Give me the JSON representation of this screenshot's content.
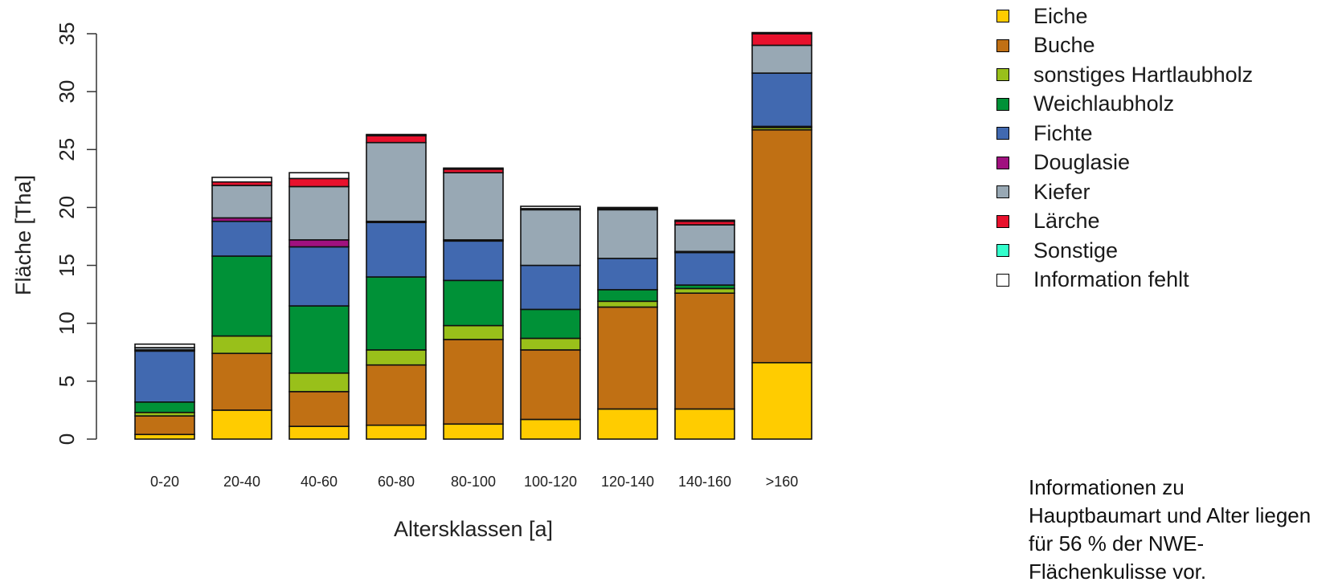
{
  "chart_data": {
    "type": "bar",
    "stacked": true,
    "xlabel": "Altersklassen [a]",
    "ylabel": "Fläche [Tha]",
    "ylim": [
      0,
      35
    ],
    "yticks": [
      0,
      5,
      10,
      15,
      20,
      25,
      30,
      35
    ],
    "grid": false,
    "legend_position": "top-right",
    "categories": [
      "0-20",
      "20-40",
      "40-60",
      "60-80",
      "80-100",
      "100-120",
      "120-140",
      "140-160",
      ">160"
    ],
    "series": [
      {
        "name": "Eiche",
        "color": "#FFCC00",
        "values": [
          0.4,
          2.5,
          1.1,
          1.2,
          1.3,
          1.7,
          2.6,
          2.6,
          6.6
        ]
      },
      {
        "name": "Buche",
        "color": "#C07014",
        "values": [
          1.6,
          4.9,
          3.0,
          5.2,
          7.3,
          6.0,
          8.8,
          10.0,
          20.1
        ]
      },
      {
        "name": "sonstiges Hartlaubholz",
        "color": "#99C01A",
        "values": [
          0.3,
          1.5,
          1.6,
          1.3,
          1.2,
          1.0,
          0.5,
          0.4,
          0.2
        ]
      },
      {
        "name": "Weichlaubholz",
        "color": "#009137",
        "values": [
          0.9,
          6.9,
          5.8,
          6.3,
          3.9,
          2.5,
          1.0,
          0.3,
          0.1
        ]
      },
      {
        "name": "Fichte",
        "color": "#4169B0",
        "values": [
          4.4,
          3.0,
          5.1,
          4.7,
          3.4,
          3.8,
          2.7,
          2.8,
          4.6
        ]
      },
      {
        "name": "Douglasie",
        "color": "#A0117F",
        "values": [
          0.1,
          0.3,
          0.6,
          0.1,
          0.1,
          0.0,
          0.0,
          0.1,
          0.0
        ]
      },
      {
        "name": "Kiefer",
        "color": "#98A8B4",
        "values": [
          0.2,
          2.8,
          4.6,
          6.8,
          5.8,
          4.8,
          4.2,
          2.3,
          2.4
        ]
      },
      {
        "name": "Lärche",
        "color": "#E8112D",
        "values": [
          0.0,
          0.3,
          0.7,
          0.6,
          0.3,
          0.1,
          0.1,
          0.3,
          1.0
        ]
      },
      {
        "name": "Sonstige",
        "color": "#33FFCC",
        "values": [
          0.0,
          0.0,
          0.0,
          0.0,
          0.0,
          0.0,
          0.0,
          0.0,
          0.0
        ]
      },
      {
        "name": "Information fehlt",
        "color": "#FFFFFF",
        "values": [
          0.3,
          0.4,
          0.5,
          0.1,
          0.1,
          0.2,
          0.1,
          0.1,
          0.1
        ]
      }
    ]
  },
  "note": "Informationen zu\nHauptbaumart und Alter liegen\nfür 56 % der NWE-\nFlächenkulisse vor."
}
